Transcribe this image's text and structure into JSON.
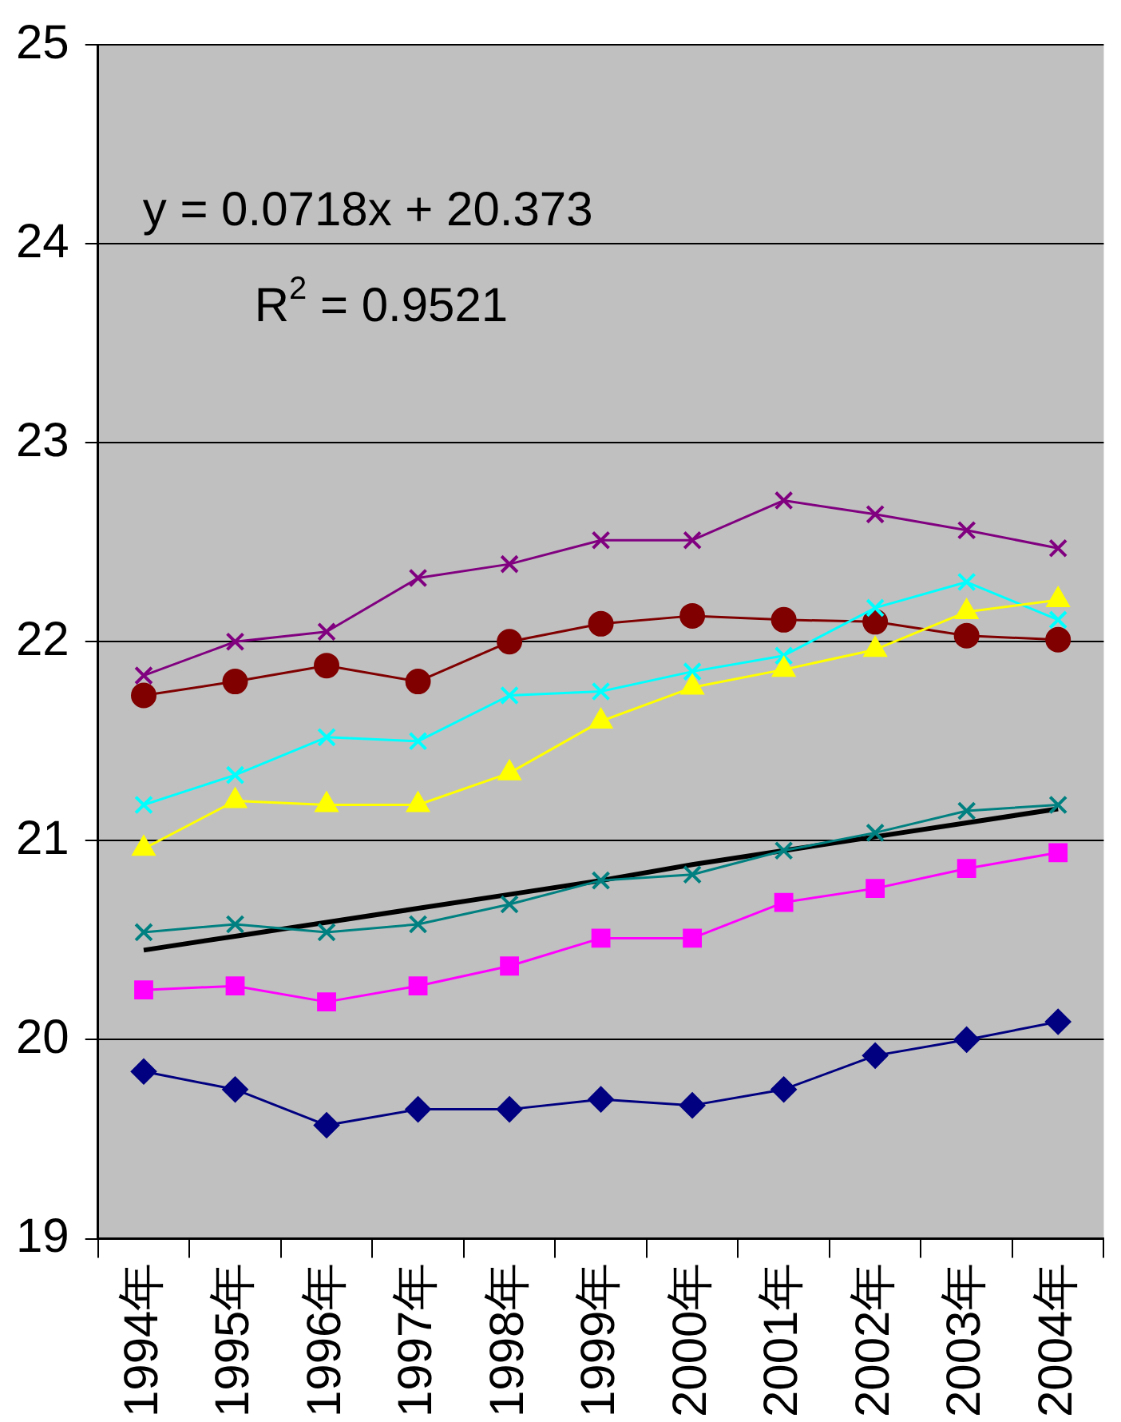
{
  "chart_data": {
    "type": "line",
    "categories": [
      "1994年",
      "1995年",
      "1996年",
      "1997年",
      "1998年",
      "1999年",
      "2000年",
      "2001年",
      "2002年",
      "2003年",
      "2004年"
    ],
    "series": [
      {
        "color": "#000080",
        "marker": "diamond",
        "values": [
          19.84,
          19.75,
          19.57,
          19.65,
          19.65,
          19.7,
          19.67,
          19.75,
          19.92,
          20.0,
          20.09
        ]
      },
      {
        "color": "#ff00ff",
        "marker": "square",
        "values": [
          20.25,
          20.27,
          20.19,
          20.27,
          20.37,
          20.51,
          20.51,
          20.69,
          20.76,
          20.86,
          20.94
        ]
      },
      {
        "color": "#ffff00",
        "marker": "triangle",
        "values": [
          20.96,
          21.2,
          21.18,
          21.18,
          21.34,
          21.6,
          21.77,
          21.86,
          21.96,
          22.15,
          22.21
        ]
      },
      {
        "color": "#00ffff",
        "marker": "cross",
        "values": [
          21.18,
          21.33,
          21.52,
          21.5,
          21.73,
          21.75,
          21.85,
          21.93,
          22.17,
          22.3,
          22.11
        ]
      },
      {
        "color": "#800000",
        "marker": "circle",
        "values": [
          21.73,
          21.8,
          21.88,
          21.8,
          22.0,
          22.09,
          22.13,
          22.11,
          22.1,
          22.03,
          22.01
        ]
      },
      {
        "color": "#800080",
        "marker": "cross",
        "values": [
          21.83,
          22.0,
          22.05,
          22.32,
          22.39,
          22.51,
          22.51,
          22.71,
          22.64,
          22.56,
          22.47
        ]
      },
      {
        "color": "#008080",
        "marker": "cross",
        "values": [
          20.54,
          20.58,
          20.54,
          20.58,
          20.68,
          20.8,
          20.83,
          20.95,
          21.04,
          21.15,
          21.18
        ]
      },
      {
        "color": "#000000",
        "marker": "none",
        "values": [
          20.45,
          20.52,
          20.59,
          20.66,
          20.73,
          20.8,
          20.88,
          20.95,
          21.02,
          21.09,
          21.16
        ]
      }
    ],
    "ylim": [
      19,
      25
    ],
    "yticks": [
      19,
      20,
      21,
      22,
      23,
      24,
      25
    ],
    "grid": "y",
    "legend": false,
    "annotations": [
      "y = 0.0718x + 20.373",
      "R$^{2}$ = 0.9521"
    ]
  }
}
